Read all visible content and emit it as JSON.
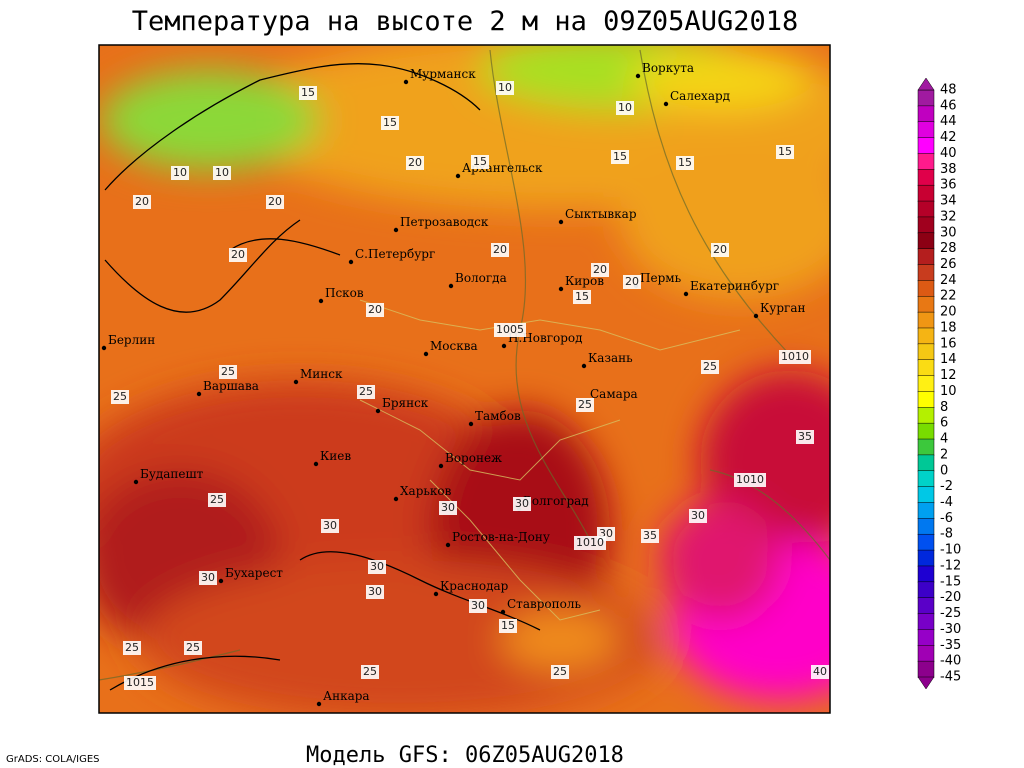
{
  "header": {
    "title": "Температура на высоте 2 м на 09Z05AUG2018"
  },
  "footer": {
    "model": "Модель GFS: 06Z05AUG2018",
    "credit": "GrADS: COLA/IGES"
  },
  "colorbar": {
    "labels": [
      48,
      46,
      44,
      42,
      40,
      38,
      36,
      34,
      32,
      30,
      28,
      26,
      24,
      22,
      20,
      18,
      16,
      14,
      12,
      10,
      8,
      6,
      4,
      2,
      0,
      -2,
      -4,
      -6,
      -8,
      -10,
      -12,
      -15,
      -20,
      -25,
      -30,
      -35,
      -40,
      -45
    ],
    "colors": [
      "#a01aa0",
      "#c000c0",
      "#e000e0",
      "#ff00ff",
      "#ff1a8c",
      "#e0004a",
      "#c80032",
      "#b40028",
      "#a0001e",
      "#8c0014",
      "#b41e1e",
      "#c83c1e",
      "#dc5a14",
      "#e87814",
      "#f09614",
      "#f5b414",
      "#f5c814",
      "#fadc14",
      "#fff014",
      "#ffff00",
      "#b4f000",
      "#78dc00",
      "#3cc83c",
      "#00c896",
      "#00d2c8",
      "#00c8e6",
      "#00a0f0",
      "#0078f0",
      "#0050f0",
      "#0028dc",
      "#1e00d2",
      "#3c00c8",
      "#5a00c8",
      "#7800c8",
      "#9600c8",
      "#a000b4",
      "#8c008c"
    ]
  },
  "map": {
    "cities": [
      "Мурманск",
      "Воркута",
      "Салехард",
      "Архангельск",
      "Сыктывкар",
      "Петрозаводск",
      "С.Петербург",
      "Вологда",
      "Киров",
      "Пермь",
      "Екатеринбург",
      "Курган",
      "Псков",
      "Берлин",
      "Москва",
      "Н.Новгород",
      "Казань",
      "Минск",
      "Варшава",
      "Брянск",
      "Самара",
      "Тамбов",
      "Киев",
      "Воронеж",
      "Будапешт",
      "Харьков",
      "Волгоград",
      "Ростов-на-Дону",
      "Бухарест",
      "Краснодар",
      "Ставрополь",
      "Анкара"
    ],
    "contour_labels": [
      15,
      10,
      10,
      10,
      15,
      15,
      10,
      20,
      15,
      15,
      15,
      20,
      20,
      20,
      20,
      20,
      20,
      15,
      20,
      20,
      25,
      25,
      25,
      25,
      25,
      30,
      30,
      30,
      35,
      30,
      30,
      30,
      30,
      30,
      35,
      25,
      25,
      25,
      15,
      25,
      30,
      25,
      40
    ],
    "isobar_labels": [
      1005,
      1010,
      1010,
      1010,
      1015
    ]
  }
}
